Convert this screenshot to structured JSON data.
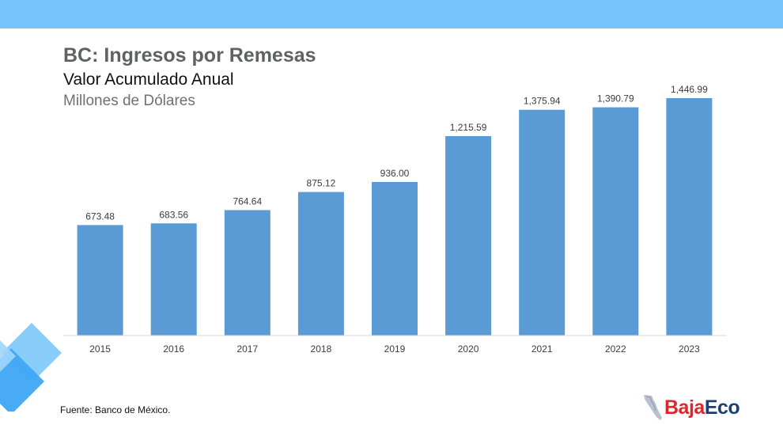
{
  "header": {
    "title": "BC: Ingresos por Remesas",
    "subtitle": "Valor Acumulado Anual",
    "units": "Millones de Dólares"
  },
  "chart_data": {
    "type": "bar",
    "categories": [
      "2015",
      "2016",
      "2017",
      "2018",
      "2019",
      "2020",
      "2021",
      "2022",
      "2023"
    ],
    "values": [
      673.48,
      683.56,
      764.64,
      875.12,
      936.0,
      1215.59,
      1375.94,
      1390.79,
      1446.99
    ],
    "value_labels": [
      "673.48",
      "683.56",
      "764.64",
      "875.12",
      "936.00",
      "1,215.59",
      "1,375.94",
      "1,390.79",
      "1,446.99"
    ],
    "title": "BC: Ingresos por Remesas",
    "subtitle": "Valor Acumulado Anual",
    "ylabel": "Millones de Dólares",
    "ylim": [
      0,
      1500
    ],
    "grid": false,
    "legend": "none",
    "bar_color": "#5b9bd5"
  },
  "footer": {
    "source": "Fuente: Banco de México.",
    "logo_part1": "Baja",
    "logo_part2": "Eco"
  },
  "colors": {
    "band": "#74c4fb",
    "bar": "#5b9bd5",
    "logo_red": "#e0262b",
    "logo_navy": "#1d3f73"
  }
}
